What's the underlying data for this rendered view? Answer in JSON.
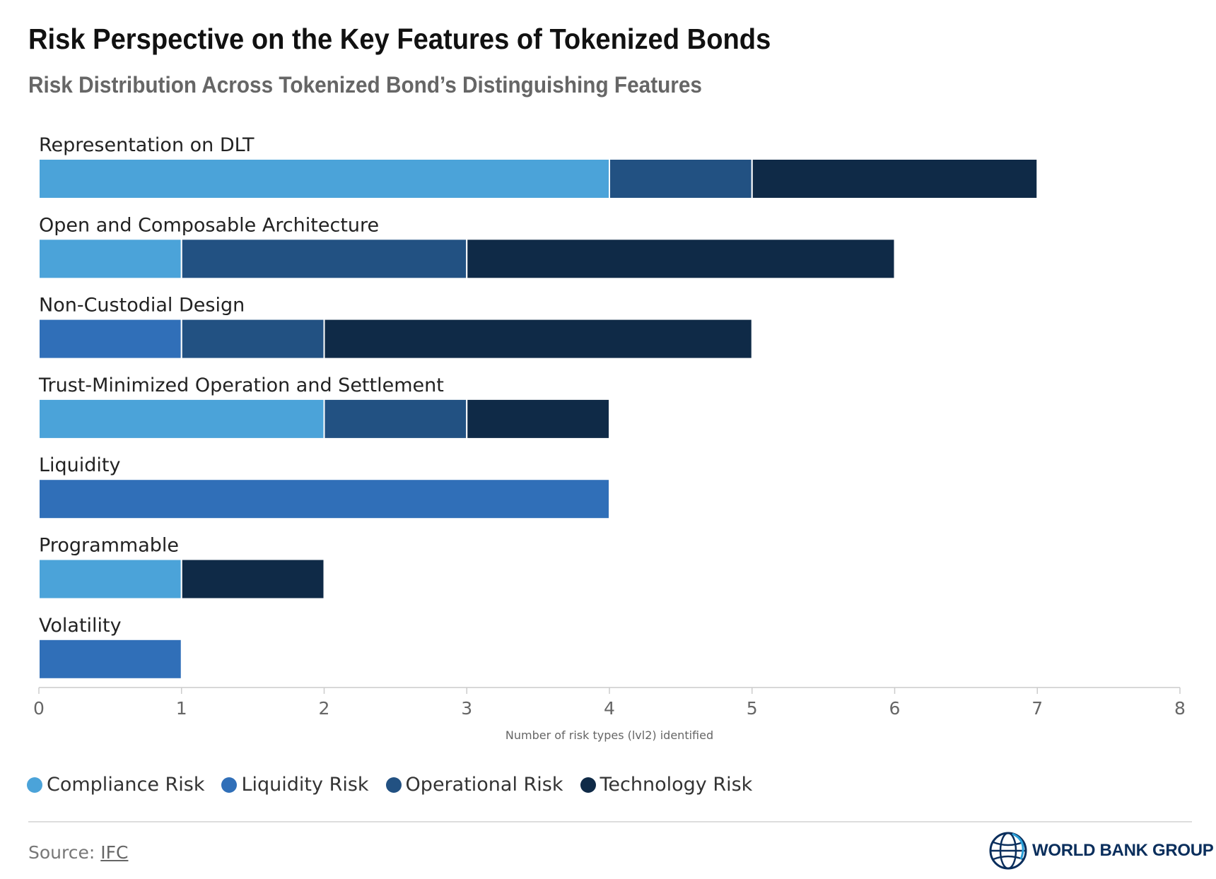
{
  "chart_data": {
    "type": "bar",
    "orientation": "horizontal",
    "stacked": true,
    "title": "Risk Perspective on the Key Features of Tokenized Bonds",
    "subtitle": "Risk Distribution Across Tokenized Bond’s Distinguishing Features",
    "xlabel": "Number of risk types (lvl2) identified",
    "ylabel": "",
    "xlim": [
      0,
      8
    ],
    "xticks": [
      "0",
      "1",
      "2",
      "3",
      "4",
      "5",
      "6",
      "7",
      "8"
    ],
    "categories": [
      "Representation on DLT",
      "Open and Composable Architecture",
      "Non-Custodial Design",
      "Trust-Minimized Operation and Settlement",
      "Liquidity",
      "Programmable",
      "Volatility"
    ],
    "series": [
      {
        "name": "Compliance Risk",
        "color": "#4ba3d9",
        "values": [
          4,
          1,
          0,
          2,
          0,
          1,
          0
        ]
      },
      {
        "name": "Liquidity Risk",
        "color": "#306fb8",
        "values": [
          0,
          0,
          1,
          0,
          4,
          0,
          1
        ]
      },
      {
        "name": "Operational Risk",
        "color": "#225182",
        "values": [
          1,
          2,
          1,
          1,
          0,
          0,
          0
        ]
      },
      {
        "name": "Technology Risk",
        "color": "#0f2a47",
        "values": [
          2,
          3,
          3,
          1,
          0,
          1,
          0
        ]
      }
    ],
    "legend_position": "bottom-left"
  },
  "footer": {
    "source_label": "Source:",
    "source_link": "IFC",
    "logo_text": "WORLD BANK GROUP"
  },
  "colors": {
    "logo": "#0a2e5c",
    "axis": "#cccccc"
  },
  "icons": {
    "logo": "globe-icon"
  }
}
